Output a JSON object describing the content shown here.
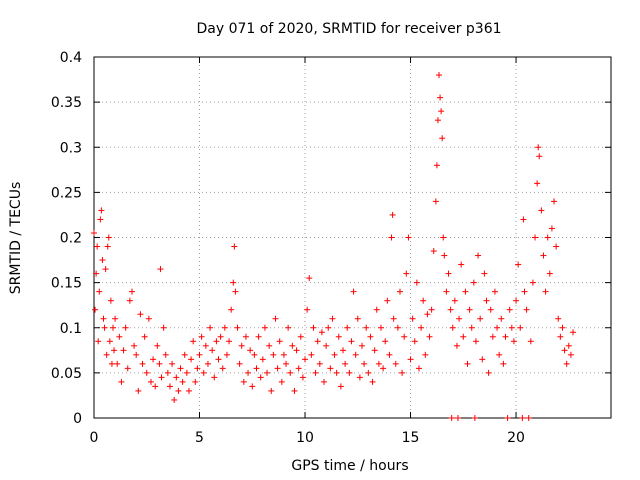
{
  "chart_data": {
    "type": "scatter",
    "title": "Day 071 of 2020, SRMTID for receiver p361",
    "xlabel": "GPS time / hours",
    "ylabel": "SRMTID / TECUs",
    "xlim": [
      0,
      24.5
    ],
    "ylim": [
      0,
      0.4
    ],
    "xticks": [
      0,
      5,
      10,
      15,
      20
    ],
    "xtick_labels": [
      "0",
      "5",
      "10",
      "15",
      "20"
    ],
    "yticks": [
      0,
      0.05,
      0.1,
      0.15,
      0.2,
      0.25,
      0.3,
      0.35,
      0.4
    ],
    "ytick_labels": [
      "0",
      "0.05",
      "0.1",
      "0.15",
      "0.2",
      "0.25",
      "0.3",
      "0.35",
      "0.4"
    ],
    "grid": true,
    "marker": "+",
    "color": "#ff0000",
    "series": [
      {
        "name": "SRMTID",
        "points": [
          [
            0.0,
            0.205
          ],
          [
            0.05,
            0.12
          ],
          [
            0.1,
            0.16
          ],
          [
            0.15,
            0.19
          ],
          [
            0.2,
            0.085
          ],
          [
            0.25,
            0.14
          ],
          [
            0.3,
            0.22
          ],
          [
            0.35,
            0.23
          ],
          [
            0.4,
            0.175
          ],
          [
            0.45,
            0.11
          ],
          [
            0.5,
            0.1
          ],
          [
            0.55,
            0.165
          ],
          [
            0.6,
            0.07
          ],
          [
            0.65,
            0.19
          ],
          [
            0.7,
            0.2
          ],
          [
            0.75,
            0.085
          ],
          [
            0.8,
            0.13
          ],
          [
            0.85,
            0.06
          ],
          [
            0.9,
            0.1
          ],
          [
            0.95,
            0.075
          ],
          [
            1.0,
            0.11
          ],
          [
            1.1,
            0.06
          ],
          [
            1.2,
            0.09
          ],
          [
            1.3,
            0.04
          ],
          [
            1.4,
            0.075
          ],
          [
            1.5,
            0.1
          ],
          [
            1.6,
            0.055
          ],
          [
            1.7,
            0.13
          ],
          [
            1.8,
            0.14
          ],
          [
            1.9,
            0.08
          ],
          [
            2.0,
            0.07
          ],
          [
            2.1,
            0.03
          ],
          [
            2.2,
            0.115
          ],
          [
            2.3,
            0.06
          ],
          [
            2.4,
            0.09
          ],
          [
            2.5,
            0.05
          ],
          [
            2.6,
            0.11
          ],
          [
            2.7,
            0.04
          ],
          [
            2.8,
            0.065
          ],
          [
            2.9,
            0.035
          ],
          [
            3.0,
            0.08
          ],
          [
            3.1,
            0.06
          ],
          [
            3.15,
            0.165
          ],
          [
            3.2,
            0.045
          ],
          [
            3.3,
            0.1
          ],
          [
            3.4,
            0.07
          ],
          [
            3.5,
            0.05
          ],
          [
            3.6,
            0.035
          ],
          [
            3.7,
            0.06
          ],
          [
            3.8,
            0.02
          ],
          [
            3.9,
            0.045
          ],
          [
            4.0,
            0.03
          ],
          [
            4.1,
            0.055
          ],
          [
            4.2,
            0.04
          ],
          [
            4.3,
            0.07
          ],
          [
            4.4,
            0.05
          ],
          [
            4.5,
            0.03
          ],
          [
            4.6,
            0.065
          ],
          [
            4.7,
            0.085
          ],
          [
            4.8,
            0.04
          ],
          [
            4.9,
            0.055
          ],
          [
            5.0,
            0.07
          ],
          [
            5.1,
            0.09
          ],
          [
            5.2,
            0.05
          ],
          [
            5.3,
            0.08
          ],
          [
            5.4,
            0.06
          ],
          [
            5.5,
            0.1
          ],
          [
            5.6,
            0.075
          ],
          [
            5.7,
            0.045
          ],
          [
            5.8,
            0.085
          ],
          [
            5.9,
            0.065
          ],
          [
            6.0,
            0.09
          ],
          [
            6.1,
            0.055
          ],
          [
            6.2,
            0.1
          ],
          [
            6.3,
            0.07
          ],
          [
            6.4,
            0.085
          ],
          [
            6.5,
            0.12
          ],
          [
            6.6,
            0.15
          ],
          [
            6.65,
            0.19
          ],
          [
            6.7,
            0.14
          ],
          [
            6.8,
            0.1
          ],
          [
            6.9,
            0.06
          ],
          [
            7.0,
            0.08
          ],
          [
            7.1,
            0.04
          ],
          [
            7.2,
            0.09
          ],
          [
            7.3,
            0.05
          ],
          [
            7.4,
            0.075
          ],
          [
            7.5,
            0.035
          ],
          [
            7.6,
            0.07
          ],
          [
            7.7,
            0.055
          ],
          [
            7.8,
            0.09
          ],
          [
            7.9,
            0.045
          ],
          [
            8.0,
            0.065
          ],
          [
            8.1,
            0.1
          ],
          [
            8.2,
            0.05
          ],
          [
            8.3,
            0.08
          ],
          [
            8.4,
            0.03
          ],
          [
            8.5,
            0.07
          ],
          [
            8.6,
            0.11
          ],
          [
            8.7,
            0.055
          ],
          [
            8.8,
            0.085
          ],
          [
            8.9,
            0.04
          ],
          [
            9.0,
            0.07
          ],
          [
            9.1,
            0.06
          ],
          [
            9.2,
            0.1
          ],
          [
            9.3,
            0.05
          ],
          [
            9.4,
            0.08
          ],
          [
            9.5,
            0.03
          ],
          [
            9.6,
            0.075
          ],
          [
            9.7,
            0.055
          ],
          [
            9.8,
            0.09
          ],
          [
            9.9,
            0.045
          ],
          [
            10.0,
            0.065
          ],
          [
            10.1,
            0.12
          ],
          [
            10.2,
            0.155
          ],
          [
            10.3,
            0.07
          ],
          [
            10.4,
            0.1
          ],
          [
            10.5,
            0.05
          ],
          [
            10.6,
            0.085
          ],
          [
            10.7,
            0.06
          ],
          [
            10.8,
            0.095
          ],
          [
            10.9,
            0.04
          ],
          [
            11.0,
            0.08
          ],
          [
            11.1,
            0.1
          ],
          [
            11.2,
            0.055
          ],
          [
            11.3,
            0.11
          ],
          [
            11.4,
            0.07
          ],
          [
            11.5,
            0.05
          ],
          [
            11.6,
            0.09
          ],
          [
            11.7,
            0.035
          ],
          [
            11.8,
            0.075
          ],
          [
            11.9,
            0.06
          ],
          [
            12.0,
            0.1
          ],
          [
            12.1,
            0.05
          ],
          [
            12.2,
            0.085
          ],
          [
            12.3,
            0.14
          ],
          [
            12.4,
            0.07
          ],
          [
            12.5,
            0.11
          ],
          [
            12.6,
            0.045
          ],
          [
            12.7,
            0.08
          ],
          [
            12.8,
            0.06
          ],
          [
            12.9,
            0.1
          ],
          [
            13.0,
            0.05
          ],
          [
            13.1,
            0.09
          ],
          [
            13.2,
            0.04
          ],
          [
            13.3,
            0.075
          ],
          [
            13.4,
            0.12
          ],
          [
            13.5,
            0.06
          ],
          [
            13.6,
            0.1
          ],
          [
            13.7,
            0.055
          ],
          [
            13.8,
            0.085
          ],
          [
            13.9,
            0.13
          ],
          [
            14.0,
            0.07
          ],
          [
            14.1,
            0.2
          ],
          [
            14.15,
            0.225
          ],
          [
            14.2,
            0.11
          ],
          [
            14.3,
            0.06
          ],
          [
            14.4,
            0.1
          ],
          [
            14.5,
            0.14
          ],
          [
            14.6,
            0.05
          ],
          [
            14.7,
            0.09
          ],
          [
            14.8,
            0.16
          ],
          [
            14.9,
            0.2
          ],
          [
            15.0,
            0.065
          ],
          [
            15.1,
            0.11
          ],
          [
            15.2,
            0.085
          ],
          [
            15.3,
            0.15
          ],
          [
            15.4,
            0.055
          ],
          [
            15.5,
            0.1
          ],
          [
            15.6,
            0.13
          ],
          [
            15.7,
            0.07
          ],
          [
            15.8,
            0.115
          ],
          [
            15.9,
            0.09
          ],
          [
            16.0,
            0.12
          ],
          [
            16.1,
            0.185
          ],
          [
            16.2,
            0.24
          ],
          [
            16.25,
            0.28
          ],
          [
            16.3,
            0.33
          ],
          [
            16.35,
            0.38
          ],
          [
            16.4,
            0.355
          ],
          [
            16.45,
            0.34
          ],
          [
            16.5,
            0.31
          ],
          [
            16.55,
            0.2
          ],
          [
            16.6,
            0.18
          ],
          [
            16.7,
            0.14
          ],
          [
            16.8,
            0.16
          ],
          [
            16.9,
            0.12
          ],
          [
            16.95,
            0.0
          ],
          [
            17.0,
            0.1
          ],
          [
            17.1,
            0.13
          ],
          [
            17.2,
            0.08
          ],
          [
            17.25,
            0.0
          ],
          [
            17.3,
            0.11
          ],
          [
            17.4,
            0.17
          ],
          [
            17.5,
            0.09
          ],
          [
            17.6,
            0.14
          ],
          [
            17.7,
            0.06
          ],
          [
            17.8,
            0.12
          ],
          [
            17.9,
            0.1
          ],
          [
            18.0,
            0.15
          ],
          [
            18.05,
            0.0
          ],
          [
            18.1,
            0.085
          ],
          [
            18.2,
            0.18
          ],
          [
            18.3,
            0.11
          ],
          [
            18.4,
            0.065
          ],
          [
            18.5,
            0.16
          ],
          [
            18.6,
            0.13
          ],
          [
            18.7,
            0.05
          ],
          [
            18.8,
            0.12
          ],
          [
            18.9,
            0.09
          ],
          [
            19.0,
            0.14
          ],
          [
            19.1,
            0.1
          ],
          [
            19.2,
            0.07
          ],
          [
            19.3,
            0.11
          ],
          [
            19.4,
            0.06
          ],
          [
            19.5,
            0.09
          ],
          [
            19.6,
            0.0
          ],
          [
            19.7,
            0.12
          ],
          [
            19.8,
            0.1
          ],
          [
            19.9,
            0.085
          ],
          [
            20.0,
            0.13
          ],
          [
            20.1,
            0.17
          ],
          [
            20.2,
            0.1
          ],
          [
            20.3,
            0.0
          ],
          [
            20.35,
            0.22
          ],
          [
            20.4,
            0.14
          ],
          [
            20.5,
            0.12
          ],
          [
            20.6,
            0.0
          ],
          [
            20.7,
            0.085
          ],
          [
            20.8,
            0.15
          ],
          [
            20.9,
            0.2
          ],
          [
            21.0,
            0.26
          ],
          [
            21.05,
            0.3
          ],
          [
            21.1,
            0.29
          ],
          [
            21.2,
            0.23
          ],
          [
            21.3,
            0.18
          ],
          [
            21.4,
            0.14
          ],
          [
            21.5,
            0.2
          ],
          [
            21.6,
            0.16
          ],
          [
            21.7,
            0.21
          ],
          [
            21.8,
            0.24
          ],
          [
            21.9,
            0.19
          ],
          [
            22.0,
            0.11
          ],
          [
            22.1,
            0.09
          ],
          [
            22.2,
            0.1
          ],
          [
            22.3,
            0.075
          ],
          [
            22.4,
            0.06
          ],
          [
            22.5,
            0.08
          ],
          [
            22.6,
            0.07
          ],
          [
            22.7,
            0.095
          ]
        ]
      }
    ]
  }
}
